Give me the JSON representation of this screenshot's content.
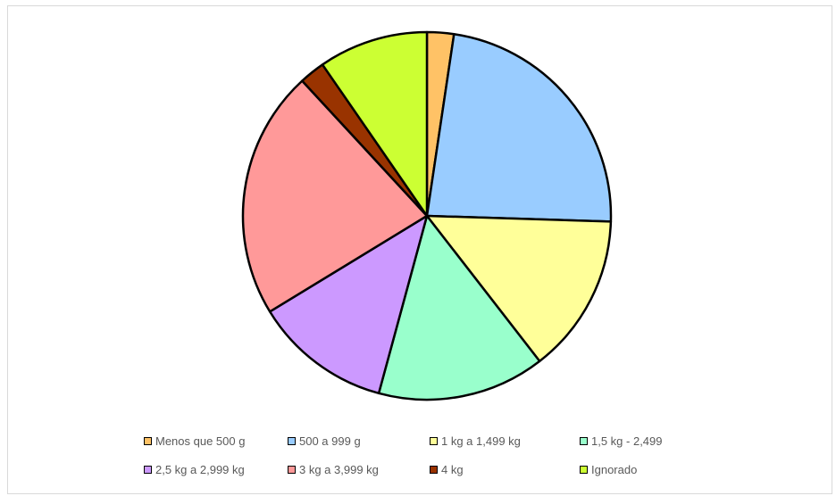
{
  "chart_data": {
    "type": "pie",
    "title": "",
    "categories": [
      "Menos que 500 g",
      "500 a 999 g",
      "1 kg a 1,499 kg",
      "1,5 kg - 2,499",
      "2,5 kg a 2,999 kg",
      "3 kg a 3,999 kg",
      "4 kg",
      "Ignorado"
    ],
    "values": [
      2.4,
      23.6,
      14.3,
      15.0,
      12.3,
      22.3,
      2.3,
      9.8
    ],
    "unit": "%",
    "colors": [
      "#ffc266",
      "#99ccff",
      "#ffff99",
      "#99ffcc",
      "#cc99ff",
      "#ff9999",
      "#993300",
      "#ccff33"
    ],
    "legend_position": "bottom",
    "start_angle_deg": 0,
    "direction": "clockwise"
  }
}
